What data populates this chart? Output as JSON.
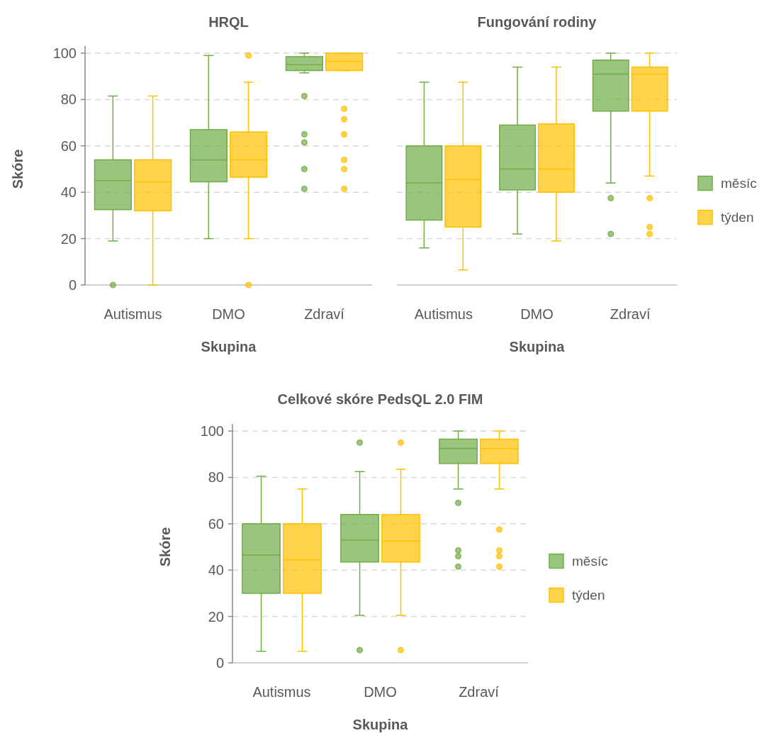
{
  "chart_data": [
    {
      "type": "box",
      "title": "HRQL",
      "xlabel": "Skupina",
      "ylabel": "Skóre",
      "categories": [
        "Autismus",
        "DMO",
        "Zdraví"
      ],
      "ylim": [
        0,
        100
      ],
      "yticks": [
        0,
        20,
        40,
        60,
        80,
        100
      ],
      "grid": "y",
      "legend": false,
      "series": [
        {
          "color": "#70ad47",
          "boxes": [
            {
              "low": 19,
              "q1": 32.5,
              "median": 45,
              "q3": 54,
              "high": 81.5,
              "outliers": [
                0
              ]
            },
            {
              "low": 20,
              "q1": 44.5,
              "median": 54,
              "q3": 67,
              "high": 99
            },
            {
              "low": 91.5,
              "q1": 92.5,
              "median": 95,
              "q3": 98.5,
              "high": 100,
              "outliers": [
                81.5,
                65,
                61.5,
                50,
                41.5
              ]
            }
          ]
        },
        {
          "color": "#ffc000",
          "boxes": [
            {
              "low": 0,
              "q1": 32,
              "median": 44.5,
              "q3": 54,
              "high": 81.5
            },
            {
              "low": 20,
              "q1": 46.5,
              "median": 54,
              "q3": 66,
              "high": 87.5,
              "outliers": [
                99,
                0
              ]
            },
            {
              "low": 92.5,
              "q1": 92.5,
              "median": 96.5,
              "q3": 100,
              "high": 100,
              "outliers": [
                76,
                71.5,
                65,
                54,
                50,
                41.5
              ]
            }
          ]
        }
      ]
    },
    {
      "type": "box",
      "title": "Fungování rodiny",
      "xlabel": "Skupina",
      "categories": [
        "Autismus",
        "DMO",
        "Zdraví"
      ],
      "ylim": [
        0,
        100
      ],
      "yticks": [
        0,
        20,
        40,
        60,
        80,
        100
      ],
      "tick_labels": "x",
      "grid": "y",
      "legend": "right",
      "series": [
        {
          "name": "měsíc",
          "color": "#70ad47",
          "boxes": [
            {
              "low": 16,
              "q1": 28,
              "median": 44,
              "q3": 60,
              "high": 87.5
            },
            {
              "low": 22,
              "q1": 41,
              "median": 50,
              "q3": 69,
              "high": 94
            },
            {
              "low": 44,
              "q1": 75,
              "median": 91,
              "q3": 97,
              "high": 100,
              "outliers": [
                37.5,
                22
              ]
            }
          ]
        },
        {
          "name": "týden",
          "color": "#ffc000",
          "boxes": [
            {
              "low": 6.5,
              "q1": 25,
              "median": 45.5,
              "q3": 60,
              "high": 87.5
            },
            {
              "low": 19,
              "q1": 40,
              "median": 50,
              "q3": 69.5,
              "high": 94
            },
            {
              "low": 47,
              "q1": 75,
              "median": 91,
              "q3": 94,
              "high": 100,
              "outliers": [
                37.5,
                25,
                22
              ]
            }
          ]
        }
      ]
    },
    {
      "type": "box",
      "title": "Celkové skóre PedsQL 2.0 FIM",
      "xlabel": "Skupina",
      "ylabel": "Skóre",
      "categories": [
        "Autismus",
        "DMO",
        "Zdraví"
      ],
      "ylim": [
        0,
        100
      ],
      "yticks": [
        0,
        20,
        40,
        60,
        80,
        100
      ],
      "grid": "y",
      "legend": "right",
      "series": [
        {
          "name": "měsíc",
          "color": "#70ad47",
          "boxes": [
            {
              "low": 5,
              "q1": 30,
              "median": 46.5,
              "q3": 60,
              "high": 80.5
            },
            {
              "low": 20.5,
              "q1": 43.5,
              "median": 53,
              "q3": 64,
              "high": 82.5,
              "outliers": [
                95,
                5.5
              ]
            },
            {
              "low": 75,
              "q1": 86,
              "median": 92.5,
              "q3": 96.5,
              "high": 100,
              "outliers": [
                69,
                48.5,
                46,
                41.5
              ]
            }
          ]
        },
        {
          "name": "týden",
          "color": "#ffc000",
          "boxes": [
            {
              "low": 5,
              "q1": 30,
              "median": 44.5,
              "q3": 60,
              "high": 75
            },
            {
              "low": 20.5,
              "q1": 43.5,
              "median": 52.5,
              "q3": 64,
              "high": 83.5,
              "outliers": [
                95,
                5.5
              ]
            },
            {
              "low": 75,
              "q1": 86,
              "median": 92.5,
              "q3": 96.5,
              "high": 100,
              "outliers": [
                57.5,
                48.5,
                46,
                41.5
              ]
            }
          ]
        }
      ]
    }
  ]
}
